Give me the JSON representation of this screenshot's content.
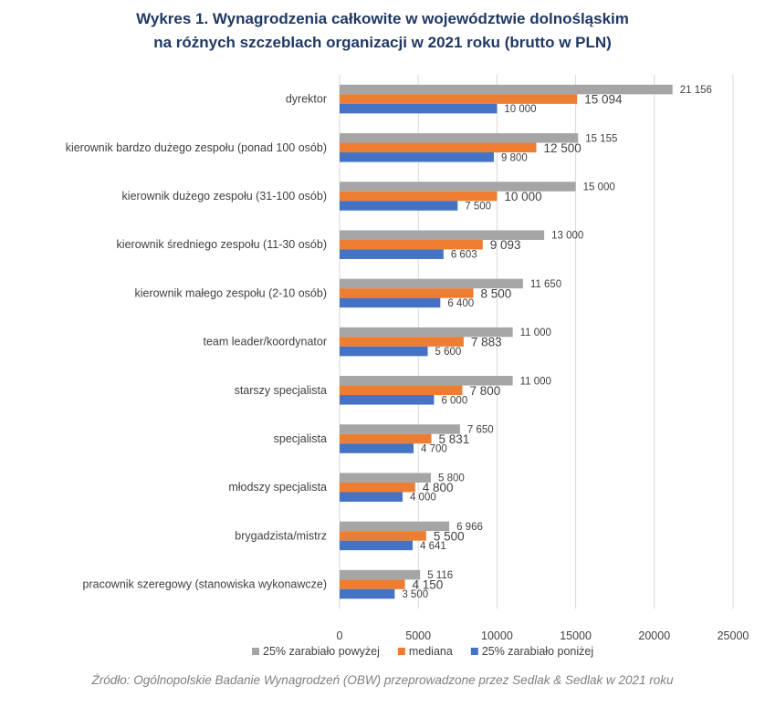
{
  "title_line1": "Wykres 1. Wynagrodzenia całkowite w województwie dolnośląskim",
  "title_line2": "na różnych szczeblach organizacji w 2021 roku (brutto w PLN)",
  "source": "Źródło: Ogólnopolskie Badanie Wynagrodzeń (OBW) przeprowadzone przez Sedlak & Sedlak w 2021 roku",
  "chart_data": {
    "type": "bar",
    "orientation": "horizontal",
    "categories": [
      "dyrektor",
      "kierownik bardzo dużego zespołu (ponad 100 osób)",
      "kierownik dużego zespołu (31-100 osób)",
      "kierownik średniego zespołu (11-30 osób)",
      "kierownik małego zespołu (2-10 osób)",
      "team leader/koordynator",
      "starszy specjalista",
      "specjalista",
      "młodszy specjalista",
      "brygadzista/mistrz",
      "pracownik szeregowy (stanowiska wykonawcze)"
    ],
    "series": [
      {
        "name": "25% zarabiało powyżej",
        "color": "#a5a5a5",
        "values": [
          21156,
          15155,
          15000,
          13000,
          11650,
          11000,
          11000,
          7650,
          5800,
          6966,
          5116
        ],
        "labels": [
          "21 156",
          "15 155",
          "15 000",
          "13 000",
          "11 650",
          "11 000",
          "11 000",
          "7 650",
          "5 800",
          "6 966",
          "5 116"
        ]
      },
      {
        "name": "mediana",
        "color": "#ed7d31",
        "values": [
          15094,
          12500,
          10000,
          9093,
          8500,
          7883,
          7800,
          5831,
          4800,
          5500,
          4150
        ],
        "labels": [
          "15 094",
          "12 500",
          "10 000",
          "9 093",
          "8 500",
          "7 883",
          "7 800",
          "5 831",
          "4 800",
          "5 500",
          "4 150"
        ]
      },
      {
        "name": "25% zarabiało poniżej",
        "color": "#4472c4",
        "values": [
          10000,
          9800,
          7500,
          6603,
          6400,
          5600,
          6000,
          4700,
          4000,
          4641,
          3500
        ],
        "labels": [
          "10 000",
          "9 800",
          "7 500",
          "6 603",
          "6 400",
          "5 600",
          "6 000",
          "4 700",
          "4 000",
          "4 641",
          "3 500"
        ]
      }
    ],
    "xlim": [
      0,
      25000
    ],
    "xticks": [
      0,
      5000,
      10000,
      15000,
      20000,
      25000
    ],
    "xtick_labels": [
      "0",
      "5000",
      "10000",
      "15000",
      "20000",
      "25000"
    ],
    "grid": true,
    "legend_position": "bottom"
  }
}
